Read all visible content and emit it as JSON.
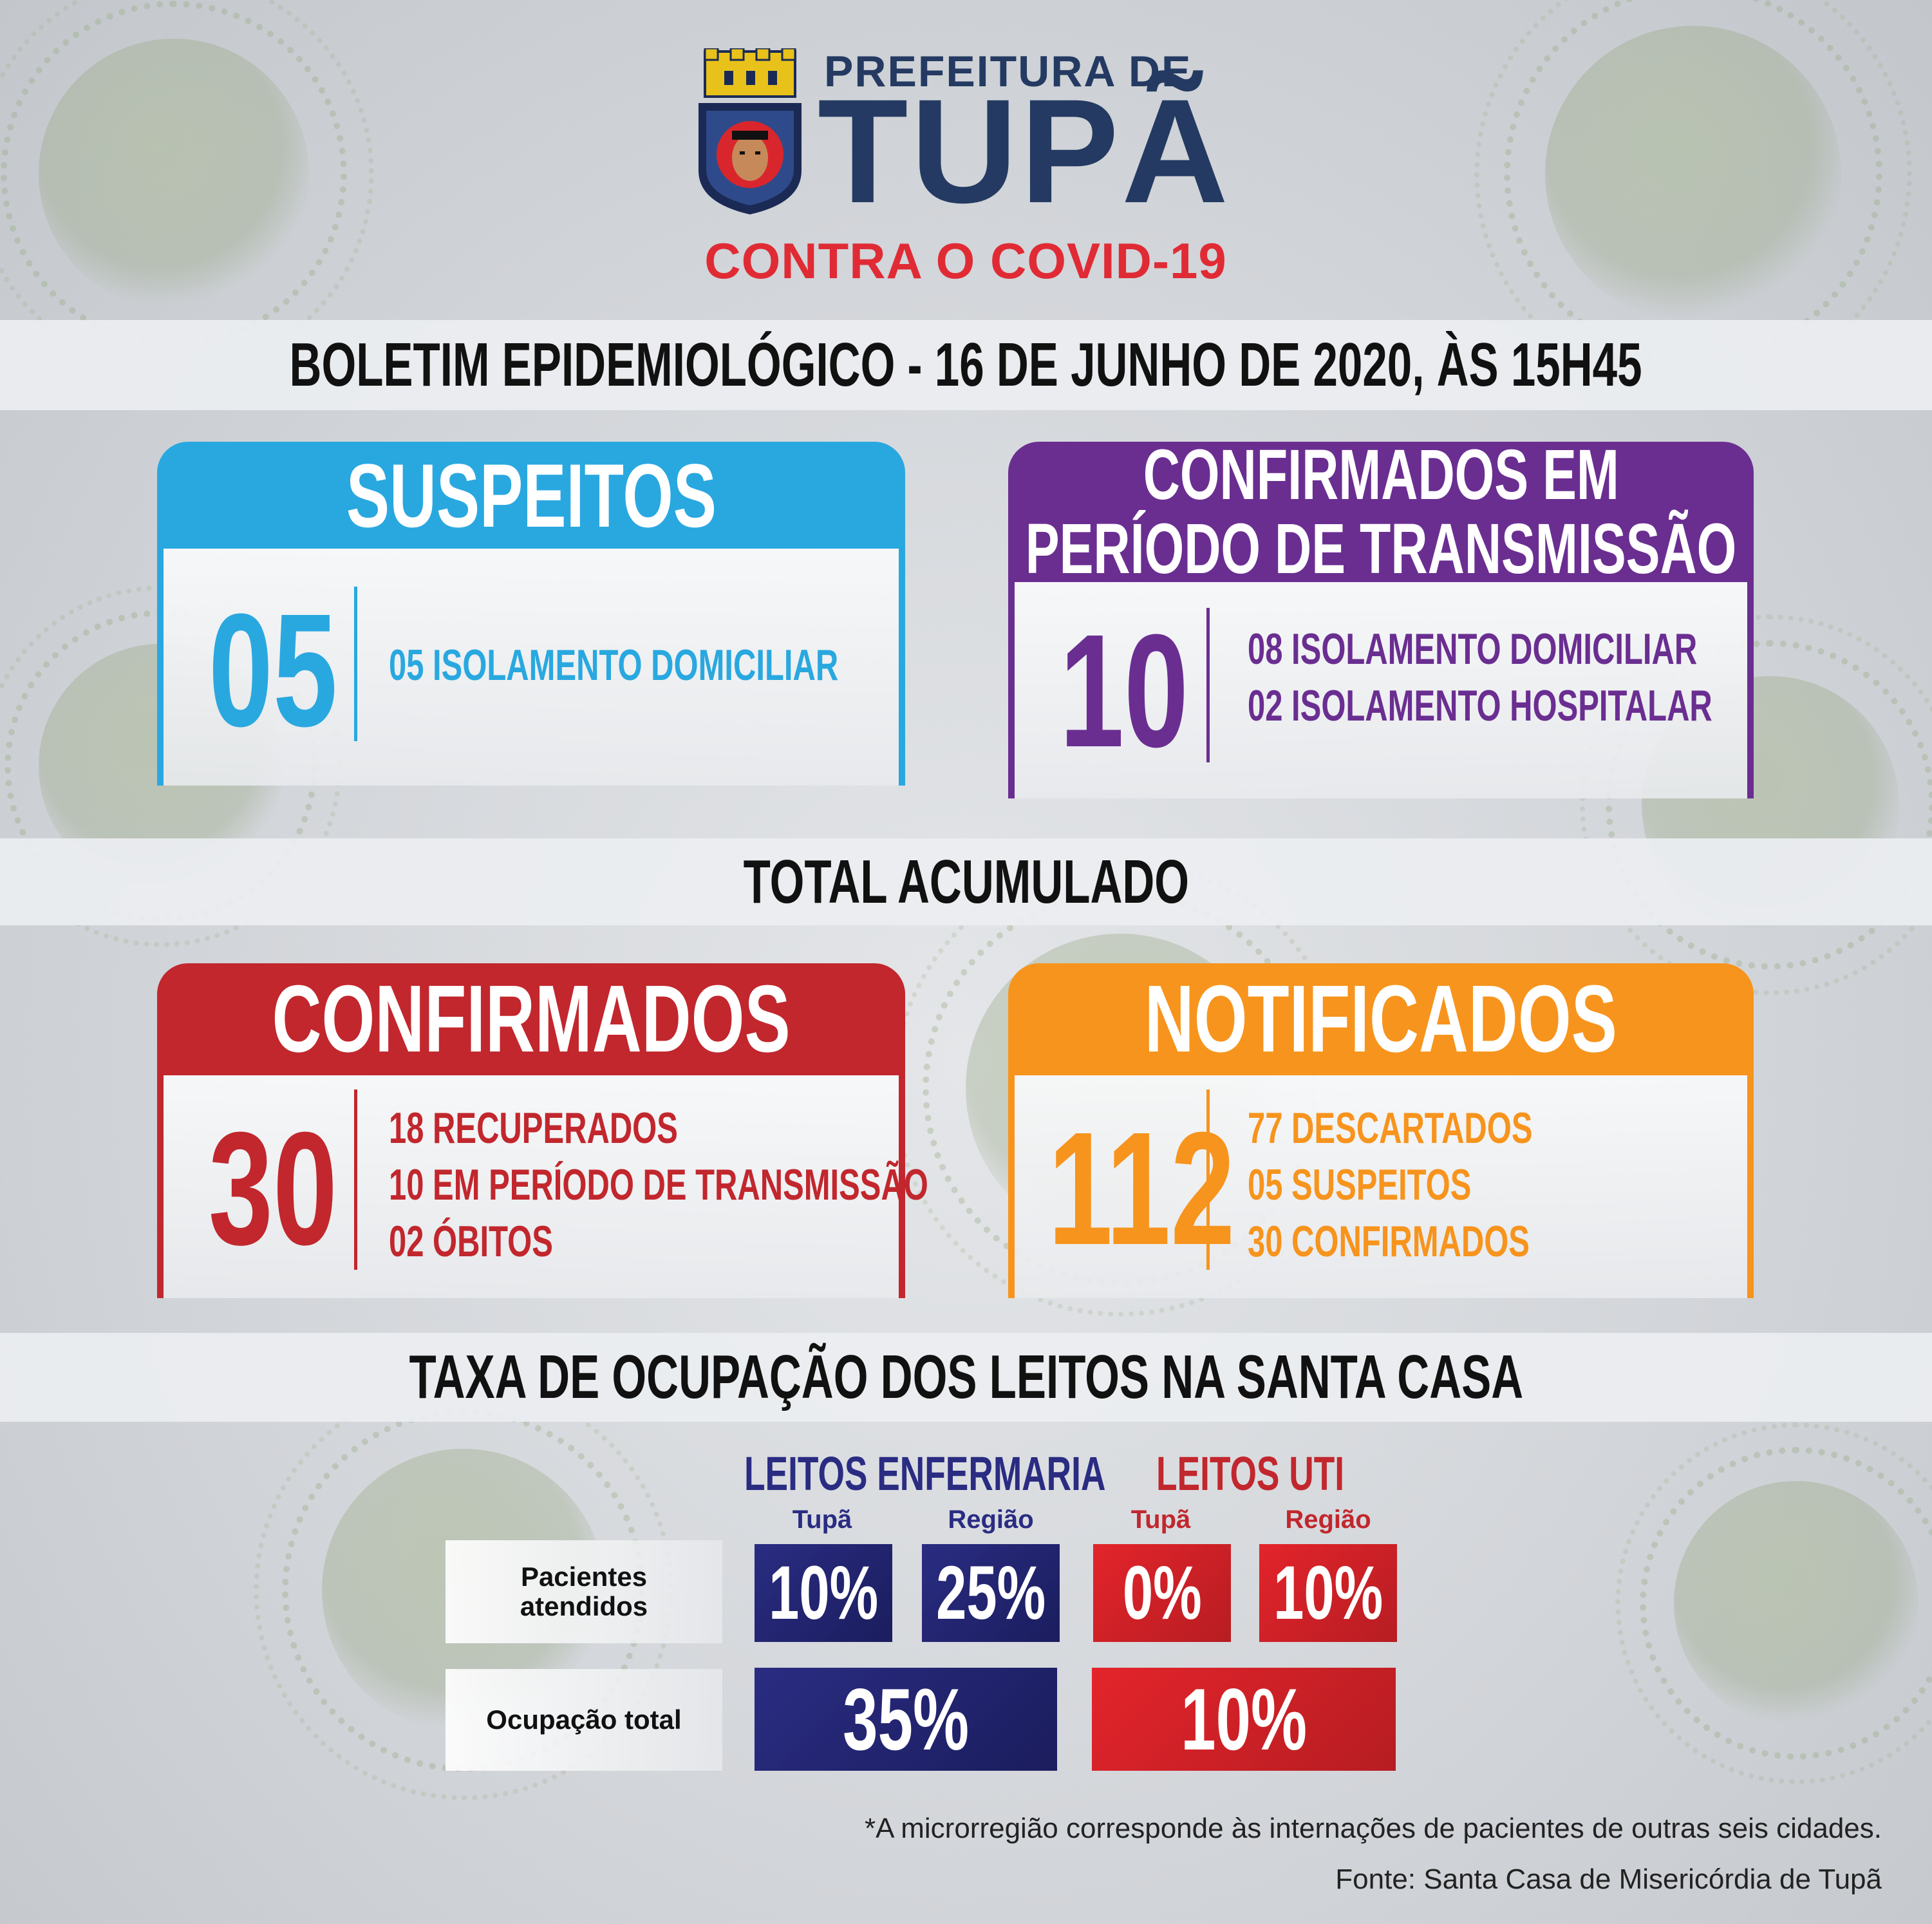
{
  "header": {
    "brand_top": "PREFEITURA DE",
    "brand_main": "TUPÃ",
    "brand_sub": "CONTRA O COVID-19"
  },
  "bulletin": {
    "title": "BOLETIM EPIDEMIOLÓGICO - 16 DE JUNHO DE 2020, ÀS  15H45"
  },
  "current": {
    "suspeitos": {
      "title": "SUSPEITOS",
      "value": "05",
      "lines": [
        "05 ISOLAMENTO DOMICILIAR"
      ],
      "color": "#29a8e0"
    },
    "confirmados_transmissao": {
      "title_line1": "CONFIRMADOS EM",
      "title_line2": "PERÍODO DE TRANSMISSÃO",
      "value": "10",
      "lines": [
        "08 ISOLAMENTO DOMICILIAR",
        "02 ISOLAMENTO HOSPITALAR"
      ],
      "color": "#6a2e91"
    }
  },
  "total": {
    "heading": "TOTAL ACUMULADO",
    "confirmados": {
      "title": "CONFIRMADOS",
      "value": "30",
      "lines": [
        "18 RECUPERADOS",
        "10 EM PERÍODO  DE TRANSMISSÃO",
        "02 ÓBITOS"
      ],
      "color": "#c1272d"
    },
    "notificados": {
      "title": "NOTIFICADOS",
      "value": "112",
      "lines": [
        "77 DESCARTADOS",
        "05 SUSPEITOS",
        "30 CONFIRMADOS"
      ],
      "color": "#f7941d"
    }
  },
  "occupancy": {
    "heading": "TAXA DE OCUPAÇÃO DOS LEITOS NA SANTA CASA",
    "enfermaria": {
      "label": "LEITOS ENFERMARIA",
      "col_tupa": "Tupã",
      "col_regiao": "Região",
      "pacientes_tupa": "10%",
      "pacientes_regiao": "25%",
      "ocupacao_total": "35%",
      "color": "#2a2c82"
    },
    "uti": {
      "label": "LEITOS UTI",
      "col_tupa": "Tupã",
      "col_regiao": "Região",
      "pacientes_tupa": "0%",
      "pacientes_regiao": "10%",
      "ocupacao_total": "10%",
      "color": "#e3242b"
    },
    "row_pacientes": "Pacientes atendidos",
    "row_ocupacao": "Ocupação total"
  },
  "footer": {
    "note": "*A microrregião corresponde às internações de pacientes de outras seis cidades.",
    "source": "Fonte: Santa Casa de Misericórdia de Tupã"
  }
}
